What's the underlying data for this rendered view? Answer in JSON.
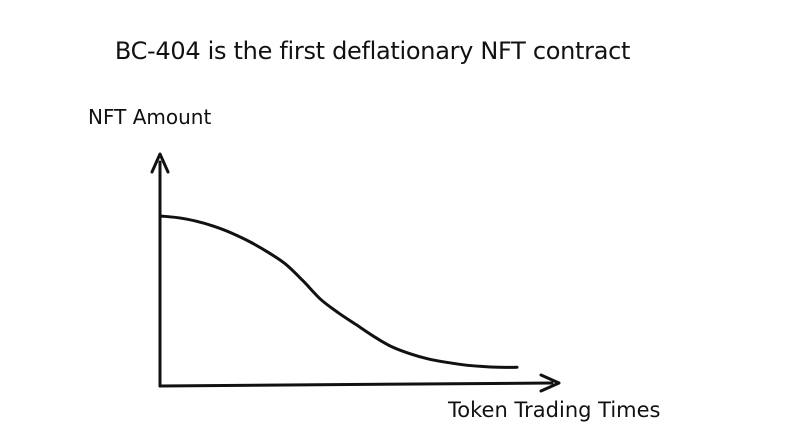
{
  "chart_data": {
    "type": "line",
    "title": "BC-404 is the first deflationary NFT contract",
    "xlabel": "Token Trading Times",
    "ylabel": "NFT Amount",
    "series": [
      {
        "x": [
          0,
          5,
          10,
          15,
          20,
          25,
          30,
          35,
          40,
          45,
          50,
          55,
          60,
          65,
          70,
          75,
          80,
          85,
          90,
          95,
          100
        ],
        "values": [
          100,
          99,
          97,
          94,
          90,
          85,
          79,
          72,
          62,
          51,
          43,
          36,
          29,
          23,
          19,
          16,
          14,
          12.5,
          11.5,
          11,
          11
        ]
      }
    ],
    "grid": false,
    "style": "hand-drawn"
  }
}
